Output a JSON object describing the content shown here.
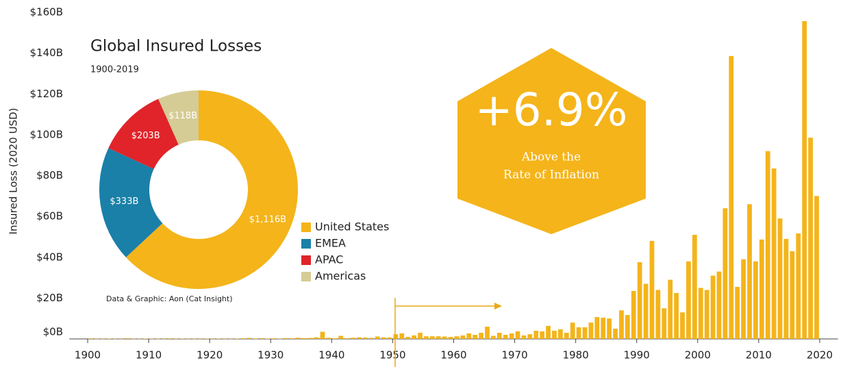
{
  "chart_data": [
    {
      "type": "bar",
      "y_label": "Insured Loss (2020 USD)",
      "x": [
        1900,
        1901,
        1902,
        1903,
        1904,
        1905,
        1906,
        1907,
        1908,
        1909,
        1910,
        1911,
        1912,
        1913,
        1914,
        1915,
        1916,
        1917,
        1918,
        1919,
        1920,
        1921,
        1922,
        1923,
        1924,
        1925,
        1926,
        1927,
        1928,
        1929,
        1930,
        1931,
        1932,
        1933,
        1934,
        1935,
        1936,
        1937,
        1938,
        1939,
        1940,
        1941,
        1942,
        1943,
        1944,
        1945,
        1946,
        1947,
        1948,
        1949,
        1950,
        1951,
        1952,
        1953,
        1954,
        1955,
        1956,
        1957,
        1958,
        1959,
        1960,
        1961,
        1962,
        1963,
        1964,
        1965,
        1966,
        1967,
        1968,
        1969,
        1970,
        1971,
        1972,
        1973,
        1974,
        1975,
        1976,
        1977,
        1978,
        1979,
        1980,
        1981,
        1982,
        1983,
        1984,
        1985,
        1986,
        1987,
        1988,
        1989,
        1990,
        1991,
        1992,
        1993,
        1994,
        1995,
        1996,
        1997,
        1998,
        1999,
        2000,
        2001,
        2002,
        2003,
        2004,
        2005,
        2006,
        2007,
        2008,
        2009,
        2010,
        2011,
        2012,
        2013,
        2014,
        2015,
        2016,
        2017,
        2018,
        2019
      ],
      "values": [
        0.3,
        0.1,
        0.1,
        0.2,
        0.1,
        0.1,
        0.4,
        0.1,
        0.1,
        0.2,
        0.1,
        0.1,
        0.1,
        0.3,
        0.1,
        0.2,
        0.1,
        0.1,
        0.1,
        0.2,
        0.1,
        0.2,
        0.1,
        0.1,
        0.2,
        0.3,
        0.5,
        0.2,
        0.4,
        0.2,
        0.3,
        0.2,
        0.4,
        0.3,
        0.6,
        0.4,
        0.5,
        0.8,
        3.5,
        0.6,
        0.3,
        1.5,
        0.4,
        0.6,
        0.8,
        0.7,
        0.5,
        1.2,
        0.8,
        0.7,
        2.3,
        2.7,
        1.0,
        1.7,
        3.0,
        1.3,
        1.3,
        1.3,
        1.2,
        1.0,
        1.3,
        1.7,
        2.7,
        2.0,
        3.0,
        6.0,
        1.5,
        3.0,
        2.0,
        2.7,
        3.7,
        1.7,
        2.3,
        4.0,
        3.7,
        6.4,
        4.0,
        4.7,
        3.0,
        8.0,
        5.7,
        5.7,
        8.0,
        10.7,
        10.4,
        10.0,
        5.0,
        14.0,
        11.7,
        23.5,
        37.6,
        27,
        48,
        24,
        15,
        29,
        22.5,
        13,
        38,
        51,
        25,
        24,
        31,
        33,
        64,
        138.6,
        25.5,
        39,
        66,
        38,
        48.7,
        92,
        83.5,
        59,
        49,
        43,
        51.7,
        155.7,
        98.6,
        70
      ],
      "color": "#f4b41a",
      "xlim": [
        1897,
        2023
      ],
      "xticks": [
        1900,
        1910,
        1920,
        1930,
        1940,
        1950,
        1960,
        1970,
        1980,
        1990,
        2000,
        2010,
        2020
      ],
      "ylim": [
        0,
        160
      ],
      "yticks": [
        {
          "value": 0,
          "label": "$0B"
        },
        {
          "value": 20,
          "label": "$20B"
        },
        {
          "value": 40,
          "label": "$40B"
        },
        {
          "value": 60,
          "label": "$60B"
        },
        {
          "value": 80,
          "label": "$80B"
        },
        {
          "value": 100,
          "label": "$100B"
        },
        {
          "value": 120,
          "label": "$120B"
        },
        {
          "value": 140,
          "label": "$140B"
        },
        {
          "value": 160,
          "label": "$160B"
        }
      ],
      "grid": false,
      "annotations": [
        "+6.9%",
        "Above the",
        "Rate of Inflation"
      ]
    },
    {
      "type": "pie",
      "title": "Global Insured Losses",
      "subtitle": "1900-2019",
      "source": "Data & Graphic: Aon (Cat Insight)",
      "categories": [
        "United States",
        "EMEA",
        "APAC",
        "Americas"
      ],
      "values": [
        1116,
        333,
        203,
        118
      ],
      "value_labels": [
        "$1,116B",
        "$333B",
        "$203B",
        "$118B"
      ],
      "colors": [
        "#f4b41a",
        "#1a80a8",
        "#e0242a",
        "#d5cc95"
      ]
    }
  ]
}
